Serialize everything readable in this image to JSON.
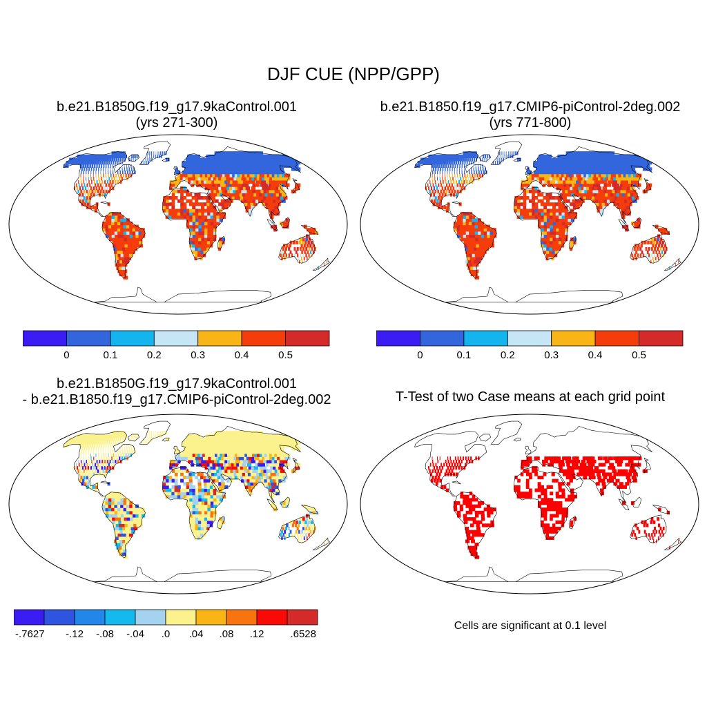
{
  "title": "DJF CUE (NPP/GPP)",
  "panels": [
    {
      "title_lines": [
        "b.e21.B1850G.f19_g17.9kaControl.001",
        "(yrs 271-300)"
      ],
      "kind": "cue_a"
    },
    {
      "title_lines": [
        "b.e21.B1850.f19_g17.CMIP6-piControl-2deg.002",
        "(yrs 771-800)"
      ],
      "kind": "cue_b"
    },
    {
      "title_lines": [
        "b.e21.B1850G.f19_g17.9kaControl.001",
        "- b.e21.B1850.f19_g17.CMIP6-piControl-2deg.002"
      ],
      "kind": "diff"
    },
    {
      "title_lines": [
        "T-Test of two Case means at each grid point"
      ],
      "kind": "ttest"
    }
  ],
  "colorbars": {
    "cue": {
      "colors": [
        "#3b1cf2",
        "#3366dd",
        "#14b4ee",
        "#c6e6f6",
        "#f9b515",
        "#f53c0b",
        "#d52a2a"
      ],
      "labels": [
        "0",
        "0.1",
        "0.2",
        "0.3",
        "0.4",
        "0.5"
      ]
    },
    "diff": {
      "colors": [
        "#3b1cf2",
        "#2e55e0",
        "#2387ea",
        "#14baee",
        "#a5d2ee",
        "#fbf28e",
        "#f9b515",
        "#f77410",
        "#f90a05",
        "#d52a2a"
      ],
      "labels": [
        "-.7627",
        "-.12",
        "-.08",
        "-.04",
        ".0",
        ".04",
        ".08",
        ".12",
        ".6528"
      ],
      "label_slots": [
        0,
        2,
        3,
        4,
        5,
        6,
        7,
        8,
        10
      ]
    }
  },
  "footnote": "Cells are significant at 0.1 level",
  "colors": {
    "significant": "#ff0000",
    "outline": "#000000"
  }
}
